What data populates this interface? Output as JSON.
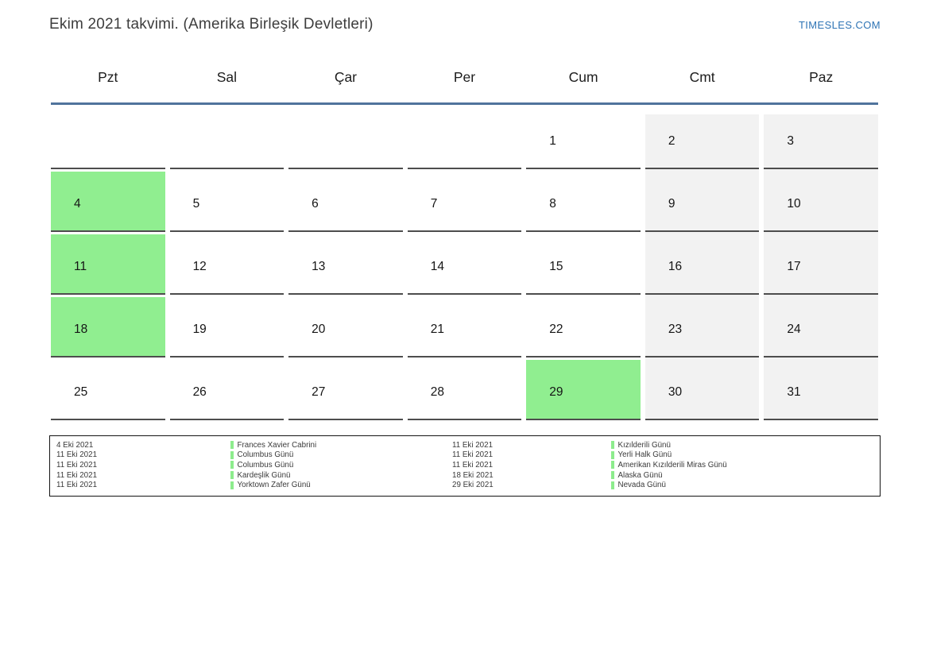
{
  "page": {
    "title": "Ekim 2021 takvimi. (Amerika Birleşik Devletleri)",
    "site": "TIMESLES.COM"
  },
  "calendar": {
    "weekday_headers": [
      "Pzt",
      "Sal",
      "Çar",
      "Per",
      "Cum",
      "Cmt",
      "Paz"
    ],
    "weeks": [
      [
        "",
        "",
        "",
        "",
        "1",
        "2",
        "3"
      ],
      [
        "4",
        "5",
        "6",
        "7",
        "8",
        "9",
        "10"
      ],
      [
        "11",
        "12",
        "13",
        "14",
        "15",
        "16",
        "17"
      ],
      [
        "18",
        "19",
        "20",
        "21",
        "22",
        "23",
        "24"
      ],
      [
        "25",
        "26",
        "27",
        "28",
        "29",
        "30",
        "31"
      ]
    ],
    "highlighted_days": [
      4,
      11,
      18,
      29
    ],
    "weekend_columns": [
      5,
      6
    ],
    "colors": {
      "highlight": "#90ee90",
      "weekend_background": "#f2f2f2",
      "header_underline": "#50739c",
      "cell_border": "#4d4d4d",
      "link": "#2e74b5"
    }
  },
  "legend": {
    "left": [
      {
        "date": "4 Eki 2021",
        "name": "Frances Xavier Cabrini"
      },
      {
        "date": "11 Eki 2021",
        "name": "Columbus Günü"
      },
      {
        "date": "11 Eki 2021",
        "name": "Columbus Günü"
      },
      {
        "date": "11 Eki 2021",
        "name": "Kardeşlik Günü"
      },
      {
        "date": "11 Eki 2021",
        "name": "Yorktown Zafer Günü"
      }
    ],
    "right": [
      {
        "date": "11 Eki 2021",
        "name": "Kızılderili Günü"
      },
      {
        "date": "11 Eki 2021",
        "name": "Yerli Halk Günü"
      },
      {
        "date": "11 Eki 2021",
        "name": "Amerikan Kızılderili Miras Günü"
      },
      {
        "date": "18 Eki 2021",
        "name": "Alaska Günü"
      },
      {
        "date": "29 Eki 2021",
        "name": "Nevada Günü"
      }
    ]
  }
}
